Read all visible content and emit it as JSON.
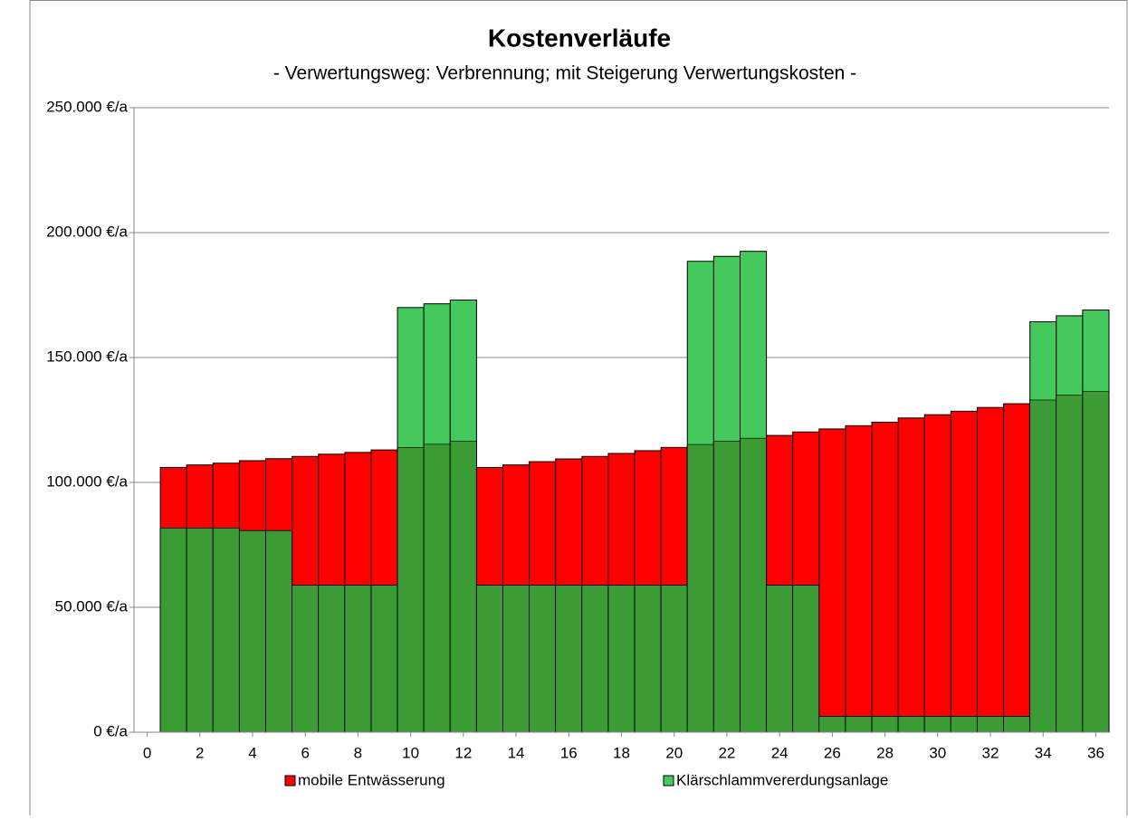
{
  "chart_data": {
    "type": "bar",
    "title": "Kostenverläufe",
    "subtitle": "- Verwertungsweg: Verbrennung; mit Steigerung Verwertungskosten -",
    "x": [
      1,
      2,
      3,
      4,
      5,
      6,
      7,
      8,
      9,
      10,
      11,
      12,
      13,
      14,
      15,
      16,
      17,
      18,
      19,
      20,
      21,
      22,
      23,
      24,
      25,
      26,
      27,
      28,
      29,
      30,
      31,
      32,
      33,
      34,
      35,
      36
    ],
    "series": [
      {
        "name": "mobile Entwässerung",
        "color": "#ff0000",
        "values": [
          106000,
          107000,
          107700,
          108700,
          109500,
          110400,
          111300,
          112000,
          113000,
          114000,
          115300,
          116500,
          106000,
          107000,
          108300,
          109400,
          110400,
          111600,
          112700,
          114000,
          115200,
          116500,
          117700,
          118800,
          120200,
          121400,
          122700,
          124100,
          125800,
          127100,
          128500,
          130000,
          131500,
          133000,
          135000,
          136500
        ]
      },
      {
        "name": "Klärschlammvererdungsanlage",
        "color": "#46c95c",
        "values": [
          81700,
          81700,
          81700,
          80700,
          80700,
          58800,
          58800,
          58800,
          58800,
          170000,
          171500,
          173000,
          58800,
          58800,
          58800,
          58800,
          58800,
          58800,
          58800,
          58800,
          188500,
          190500,
          192500,
          58800,
          58800,
          6300,
          6300,
          6300,
          6300,
          6300,
          6300,
          6300,
          6300,
          164300,
          166700,
          169000
        ]
      }
    ],
    "overlap_color": "#3d9b35",
    "xlim": [
      -0.5,
      36.5
    ],
    "xticks": [
      0,
      2,
      4,
      6,
      8,
      10,
      12,
      14,
      16,
      18,
      20,
      22,
      24,
      26,
      28,
      30,
      32,
      34,
      36
    ],
    "ylim": [
      0,
      250000
    ],
    "yticks": [
      {
        "value": 0,
        "label": "0 €/a"
      },
      {
        "value": 50000,
        "label": "50.000 €/a"
      },
      {
        "value": 100000,
        "label": "100.000 €/a"
      },
      {
        "value": 150000,
        "label": "150.000 €/a"
      },
      {
        "value": 200000,
        "label": "200.000 €/a"
      },
      {
        "value": 250000,
        "label": "250.000 €/a"
      }
    ],
    "grid": true,
    "legend": "bottom"
  }
}
